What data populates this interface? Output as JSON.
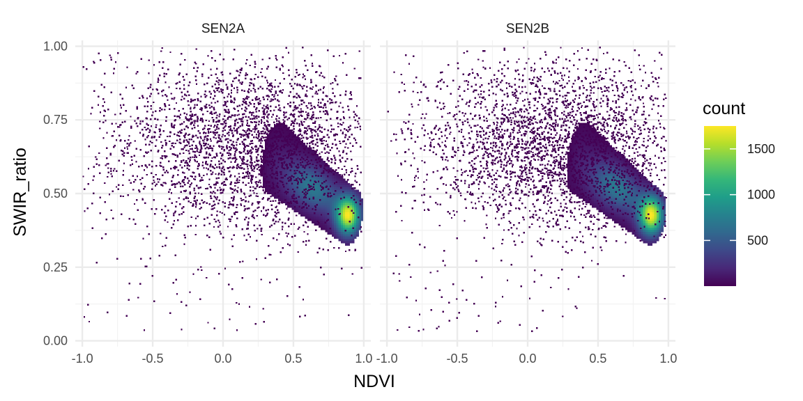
{
  "chart_data": {
    "type": "heatmap",
    "subtype": "2d-bin-density",
    "xlabel": "NDVI",
    "ylabel": "SWIR_ratio",
    "xlim": [
      -1.05,
      1.05
    ],
    "ylim": [
      -0.02,
      1.02
    ],
    "x_ticks": [
      "-1.0",
      "-0.5",
      "0.0",
      "0.5",
      "1.0"
    ],
    "y_ticks": [
      "0.00",
      "0.25",
      "0.50",
      "0.75",
      "1.00"
    ],
    "x_tick_values": [
      -1.0,
      -0.5,
      0.0,
      0.5,
      1.0
    ],
    "y_tick_values": [
      0.0,
      0.25,
      0.5,
      0.75,
      1.0
    ],
    "grid": true,
    "facets": [
      {
        "name": "SEN2A",
        "core_center": [
          0.43,
          0.6
        ],
        "dense_peak": [
          0.88,
          0.43
        ],
        "max_count": 1750
      },
      {
        "name": "SEN2B",
        "core_center": [
          0.43,
          0.6
        ],
        "dense_peak": [
          0.87,
          0.43
        ],
        "max_count": 1600
      }
    ],
    "legend": {
      "title": "count",
      "position": "right",
      "colormap": "viridis",
      "range": [
        1,
        1750
      ],
      "ticks": [
        "500",
        "1000",
        "1500"
      ],
      "tick_values": [
        500,
        1000,
        1500
      ]
    }
  }
}
